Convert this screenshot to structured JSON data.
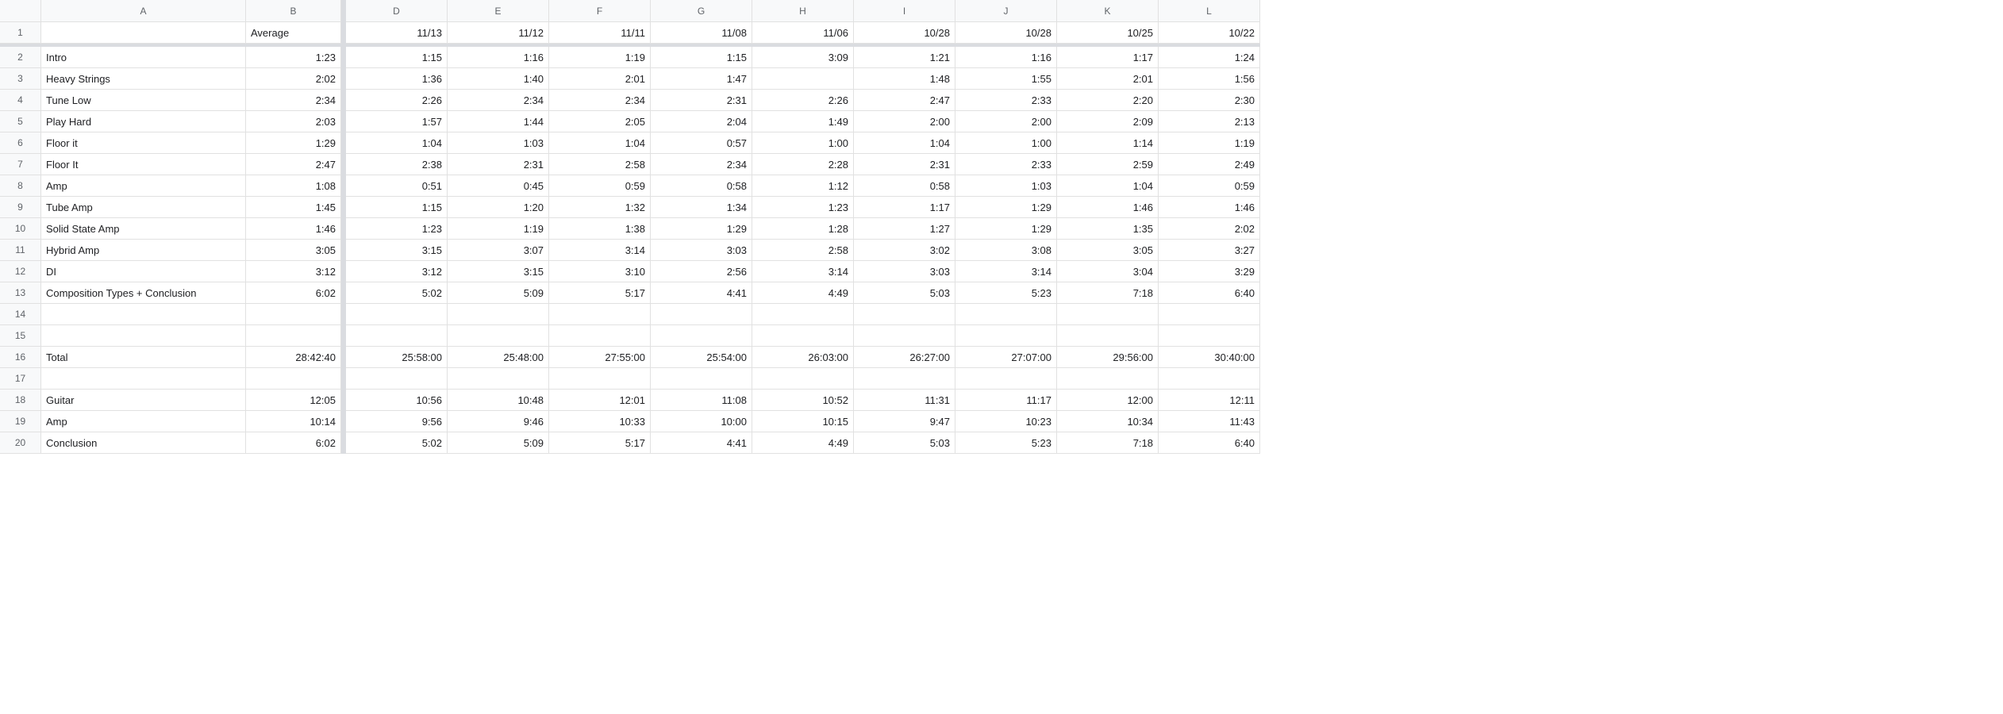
{
  "columns": {
    "headers": [
      "A",
      "B",
      "D",
      "E",
      "F",
      "G",
      "H",
      "I",
      "J",
      "K",
      "L"
    ]
  },
  "row_labels": {
    "r1": "",
    "r2": "Intro",
    "r3": "Heavy Strings",
    "r4": "Tune Low",
    "r5": "Play Hard",
    "r6": "Floor it",
    "r7": "Floor It",
    "r8": "Amp",
    "r9": "Tube Amp",
    "r10": "Solid State Amp",
    "r11": "Hybrid Amp",
    "r12": "DI",
    "r13": "Composition Types + Conclusion",
    "r14": "",
    "r15": "",
    "r16": "Total",
    "r17": "",
    "r18": "Guitar",
    "r19": "Amp",
    "r20": "Conclusion"
  },
  "col_b_header": "Average",
  "data_col_headers": {
    "D": "11/13",
    "E": "11/12",
    "F": "11/11",
    "G": "11/08",
    "H": "11/06",
    "I": "10/28",
    "J": "10/28",
    "K": "10/25",
    "L": "10/22"
  },
  "cells": {
    "r1": {
      "B": "Average",
      "D": "11/13",
      "E": "11/12",
      "F": "11/11",
      "G": "11/08",
      "H": "11/06",
      "I": "10/28",
      "J": "10/28",
      "K": "10/25",
      "L": "10/22"
    },
    "r2": {
      "B": "1:23",
      "D": "1:15",
      "E": "1:16",
      "F": "1:19",
      "G": "1:15",
      "H": "3:09",
      "I": "1:21",
      "J": "1:16",
      "K": "1:17",
      "L": "1:24"
    },
    "r3": {
      "B": "2:02",
      "D": "1:36",
      "E": "1:40",
      "F": "2:01",
      "G": "1:47",
      "H": "",
      "I": "1:48",
      "J": "1:55",
      "K": "2:01",
      "L": "1:56"
    },
    "r4": {
      "B": "2:34",
      "D": "2:26",
      "E": "2:34",
      "F": "2:34",
      "G": "2:31",
      "H": "2:26",
      "I": "2:47",
      "J": "2:33",
      "K": "2:20",
      "L": "2:30"
    },
    "r5": {
      "B": "2:03",
      "D": "1:57",
      "E": "1:44",
      "F": "2:05",
      "G": "2:04",
      "H": "1:49",
      "I": "2:00",
      "J": "2:00",
      "K": "2:09",
      "L": "2:13"
    },
    "r6": {
      "B": "1:29",
      "D": "1:04",
      "E": "1:03",
      "F": "1:04",
      "G": "0:57",
      "H": "1:00",
      "I": "1:04",
      "J": "1:00",
      "K": "1:14",
      "L": "1:19"
    },
    "r7": {
      "B": "2:47",
      "D": "2:38",
      "E": "2:31",
      "F": "2:58",
      "G": "2:34",
      "H": "2:28",
      "I": "2:31",
      "J": "2:33",
      "K": "2:59",
      "L": "2:49"
    },
    "r8": {
      "B": "1:08",
      "D": "0:51",
      "E": "0:45",
      "F": "0:59",
      "G": "0:58",
      "H": "1:12",
      "I": "0:58",
      "J": "1:03",
      "K": "1:04",
      "L": "0:59"
    },
    "r9": {
      "B": "1:45",
      "D": "1:15",
      "E": "1:20",
      "F": "1:32",
      "G": "1:34",
      "H": "1:23",
      "I": "1:17",
      "J": "1:29",
      "K": "1:46",
      "L": "1:46"
    },
    "r10": {
      "B": "1:46",
      "D": "1:23",
      "E": "1:19",
      "F": "1:38",
      "G": "1:29",
      "H": "1:28",
      "I": "1:27",
      "J": "1:29",
      "K": "1:35",
      "L": "2:02"
    },
    "r11": {
      "B": "3:05",
      "D": "3:15",
      "E": "3:07",
      "F": "3:14",
      "G": "3:03",
      "H": "2:58",
      "I": "3:02",
      "J": "3:08",
      "K": "3:05",
      "L": "3:27"
    },
    "r12": {
      "B": "3:12",
      "D": "3:12",
      "E": "3:15",
      "F": "3:10",
      "G": "2:56",
      "H": "3:14",
      "I": "3:03",
      "J": "3:14",
      "K": "3:04",
      "L": "3:29"
    },
    "r13": {
      "B": "6:02",
      "D": "5:02",
      "E": "5:09",
      "F": "5:17",
      "G": "4:41",
      "H": "4:49",
      "I": "5:03",
      "J": "5:23",
      "K": "7:18",
      "L": "6:40"
    },
    "r14": {
      "B": "",
      "D": "",
      "E": "",
      "F": "",
      "G": "",
      "H": "",
      "I": "",
      "J": "",
      "K": "",
      "L": ""
    },
    "r15": {
      "B": "",
      "D": "",
      "E": "",
      "F": "",
      "G": "",
      "H": "",
      "I": "",
      "J": "",
      "K": "",
      "L": ""
    },
    "r16": {
      "B": "28:42:40",
      "D": "25:58:00",
      "E": "25:48:00",
      "F": "27:55:00",
      "G": "25:54:00",
      "H": "26:03:00",
      "I": "26:27:00",
      "J": "27:07:00",
      "K": "29:56:00",
      "L": "30:40:00"
    },
    "r17": {
      "B": "",
      "D": "",
      "E": "",
      "F": "",
      "G": "",
      "H": "",
      "I": "",
      "J": "",
      "K": "",
      "L": ""
    },
    "r18": {
      "B": "12:05",
      "D": "10:56",
      "E": "10:48",
      "F": "12:01",
      "G": "11:08",
      "H": "10:52",
      "I": "11:31",
      "J": "11:17",
      "K": "12:00",
      "L": "12:11"
    },
    "r19": {
      "B": "10:14",
      "D": "9:56",
      "E": "9:46",
      "F": "10:33",
      "G": "10:00",
      "H": "10:15",
      "I": "9:47",
      "J": "10:23",
      "K": "10:34",
      "L": "11:43"
    },
    "r20": {
      "B": "6:02",
      "D": "5:02",
      "E": "5:09",
      "F": "5:17",
      "G": "4:41",
      "H": "4:49",
      "I": "5:03",
      "J": "5:23",
      "K": "7:18",
      "L": "6:40"
    }
  },
  "row_numbers": [
    "1",
    "2",
    "3",
    "4",
    "5",
    "6",
    "7",
    "8",
    "9",
    "10",
    "11",
    "12",
    "13",
    "14",
    "15",
    "16",
    "17",
    "18",
    "19",
    "20"
  ],
  "data_cols": [
    "D",
    "E",
    "F",
    "G",
    "H",
    "I",
    "J",
    "K",
    "L"
  ],
  "colors": {
    "header_bg": "#f8f9fa",
    "border": "#e1e1e1",
    "text": "#202124",
    "header_text": "#5f6368",
    "splitter": "#dadce0"
  }
}
